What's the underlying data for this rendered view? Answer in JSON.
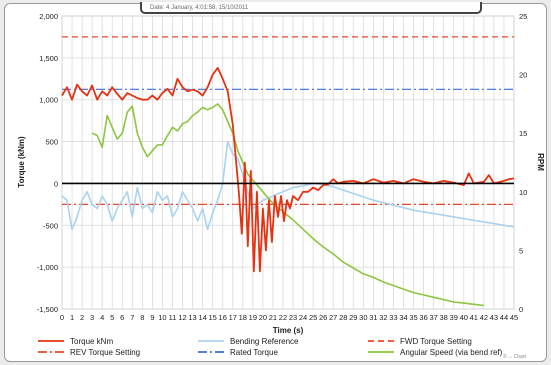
{
  "header": {
    "text": "Date: 4 January, 4:01:58, 15/10/2011"
  },
  "watermark": "© ... Chart",
  "colors": {
    "torque": "#e63212",
    "bending": "#a9d3ee",
    "fwd": "#e8472b",
    "rev": "#e8472b",
    "rated": "#3b6fd9",
    "angular": "#8cc641",
    "grid": "#d9d9d9",
    "zero_line": "#000000"
  },
  "chart_data": {
    "type": "line",
    "xlabel": "Time (s)",
    "ylabel": "Torque (kNm)",
    "y2label": "RPM",
    "xlim": [
      0,
      45
    ],
    "ylim": [
      -1500,
      2000
    ],
    "y2lim": [
      0,
      25
    ],
    "x_ticks": [
      0,
      1,
      2,
      3,
      4,
      5,
      6,
      7,
      8,
      9,
      10,
      11,
      12,
      13,
      14,
      15,
      16,
      17,
      18,
      19,
      20,
      21,
      22,
      23,
      24,
      25,
      26,
      27,
      28,
      29,
      30,
      31,
      32,
      33,
      34,
      35,
      36,
      37,
      38,
      39,
      40,
      41,
      42,
      43,
      44,
      45
    ],
    "y_ticks": [
      -1500,
      -1000,
      -500,
      0,
      500,
      1000,
      1500,
      2000
    ],
    "y_tick_labels": [
      "-1,500",
      "-1,000",
      "-500",
      "0",
      "500",
      "1,000",
      "1,500",
      "2,000"
    ],
    "y2_ticks": [
      0,
      5,
      10,
      15,
      20,
      25
    ],
    "grid": true,
    "legend_position": "bottom",
    "legend": [
      {
        "name": "Torque kNm",
        "style": "solid",
        "color": "#e63212"
      },
      {
        "name": "Bending Reference",
        "style": "solid",
        "color": "#a9d3ee"
      },
      {
        "name": "FWD Torque Setting",
        "style": "dashed",
        "color": "#e8472b"
      },
      {
        "name": "REV Torque Setting",
        "style": "dashdot",
        "color": "#e8472b"
      },
      {
        "name": "Rated Torque",
        "style": "dashdot",
        "color": "#3b6fd9"
      },
      {
        "name": "Angular Speed (via bend ref)",
        "style": "solid",
        "color": "#8cc641"
      }
    ],
    "series": [
      {
        "name": "Torque kNm",
        "axis": "left",
        "x": [
          0,
          0.5,
          1,
          1.5,
          2,
          2.5,
          3,
          3.5,
          4,
          4.5,
          5,
          5.5,
          6,
          6.5,
          7,
          7.5,
          8,
          8.5,
          9,
          9.5,
          10,
          10.5,
          11,
          11.5,
          12,
          12.5,
          13,
          13.5,
          14,
          14.5,
          15,
          15.5,
          16,
          16.5,
          17,
          17.3,
          17.6,
          17.9,
          18.2,
          18.5,
          18.8,
          19.1,
          19.4,
          19.7,
          20,
          20.3,
          20.6,
          20.9,
          21.2,
          21.5,
          21.8,
          22.1,
          22.4,
          22.7,
          23,
          23.5,
          24,
          24.5,
          25,
          25.5,
          26,
          26.5,
          27,
          27.5,
          28,
          29,
          30,
          31,
          32,
          33,
          34,
          35,
          36,
          37,
          38,
          39,
          40,
          40.5,
          41,
          42,
          42.5,
          43,
          44,
          44.5,
          45
        ],
        "y": [
          1050,
          1150,
          1000,
          1180,
          1100,
          1050,
          1170,
          1000,
          1100,
          1050,
          1150,
          1070,
          1000,
          1080,
          1050,
          1020,
          1000,
          1000,
          1050,
          1000,
          1080,
          1130,
          1050,
          1250,
          1150,
          1100,
          1120,
          1100,
          1050,
          1150,
          1300,
          1380,
          1250,
          1100,
          700,
          300,
          -100,
          -600,
          250,
          -750,
          150,
          -1050,
          -100,
          -1050,
          -300,
          -800,
          -200,
          -700,
          -150,
          -400,
          -150,
          -450,
          -200,
          -300,
          -150,
          -200,
          -100,
          -100,
          -50,
          -80,
          -20,
          -10,
          50,
          0,
          20,
          30,
          0,
          50,
          10,
          30,
          0,
          50,
          20,
          0,
          30,
          10,
          -20,
          120,
          0,
          20,
          100,
          0,
          30,
          50,
          60
        ]
      },
      {
        "name": "Bending Reference",
        "axis": "left",
        "x": [
          0,
          0.5,
          1,
          1.5,
          2,
          2.5,
          3,
          3.5,
          4,
          4.5,
          5,
          5.5,
          6,
          6.5,
          7,
          7.5,
          8,
          8.5,
          9,
          9.5,
          10,
          10.5,
          11,
          11.5,
          12,
          12.5,
          13,
          13.5,
          14,
          14.5,
          15,
          15.5,
          16,
          16.5,
          17,
          17.5,
          18,
          18.5,
          19,
          19.5,
          20,
          21,
          22,
          23,
          24,
          25,
          26,
          27,
          28,
          29,
          30,
          31,
          32,
          33,
          34,
          35,
          36,
          37,
          38,
          39,
          40,
          41,
          42,
          43,
          44,
          45
        ],
        "y": [
          -150,
          -200,
          -550,
          -400,
          -200,
          -100,
          -250,
          -300,
          -150,
          -250,
          -450,
          -300,
          -200,
          -100,
          -400,
          -50,
          -300,
          -250,
          -350,
          -100,
          -200,
          -150,
          -400,
          -300,
          -100,
          -200,
          -300,
          -450,
          -300,
          -550,
          -350,
          -200,
          0,
          500,
          350,
          300,
          100,
          -100,
          -300,
          -250,
          -200,
          -150,
          -100,
          -50,
          -30,
          0,
          -10,
          -40,
          -80,
          -120,
          -160,
          -200,
          -230,
          -260,
          -290,
          -320,
          -340,
          -360,
          -380,
          -400,
          -420,
          -440,
          -460,
          -480,
          -500,
          -520
        ]
      },
      {
        "name": "FWD Torque Setting",
        "axis": "left",
        "x": [
          0,
          45
        ],
        "y": [
          1750,
          1750
        ]
      },
      {
        "name": "REV Torque Setting",
        "axis": "left",
        "x": [
          0,
          45
        ],
        "y": [
          -250,
          -250
        ]
      },
      {
        "name": "Rated Torque",
        "axis": "left",
        "x": [
          0,
          45
        ],
        "y": [
          1125,
          1125
        ]
      },
      {
        "name": "Angular Speed (via bend ref)",
        "axis": "right",
        "x": [
          3,
          3.5,
          4,
          4.5,
          5,
          5.5,
          6,
          6.5,
          7,
          7.5,
          8,
          8.5,
          9,
          9.5,
          10,
          10.5,
          11,
          11.5,
          12,
          12.5,
          13,
          13.5,
          14,
          14.5,
          15,
          15.5,
          16,
          16.5,
          17,
          17.5,
          18,
          18.5,
          19,
          19.5,
          20,
          21,
          22,
          23,
          24,
          25,
          26,
          27,
          28,
          29,
          30,
          31,
          32,
          33,
          34,
          35,
          36,
          37,
          38,
          39,
          40,
          41,
          42
        ],
        "y": [
          15,
          14.8,
          13.8,
          16.5,
          15.5,
          14.5,
          15,
          16.8,
          17.3,
          15,
          13.8,
          13,
          13.5,
          14,
          14,
          14.8,
          15.5,
          15.2,
          15.8,
          16,
          16.5,
          16.8,
          17.2,
          17,
          17.2,
          17.5,
          17,
          16,
          15,
          13.5,
          12.5,
          11.5,
          11,
          10.5,
          10,
          9,
          8.3,
          7.6,
          6.8,
          6,
          5.3,
          4.7,
          4,
          3.5,
          3,
          2.7,
          2.3,
          2,
          1.7,
          1.4,
          1.2,
          1,
          0.8,
          0.6,
          0.5,
          0.4,
          0.3
        ]
      }
    ]
  }
}
